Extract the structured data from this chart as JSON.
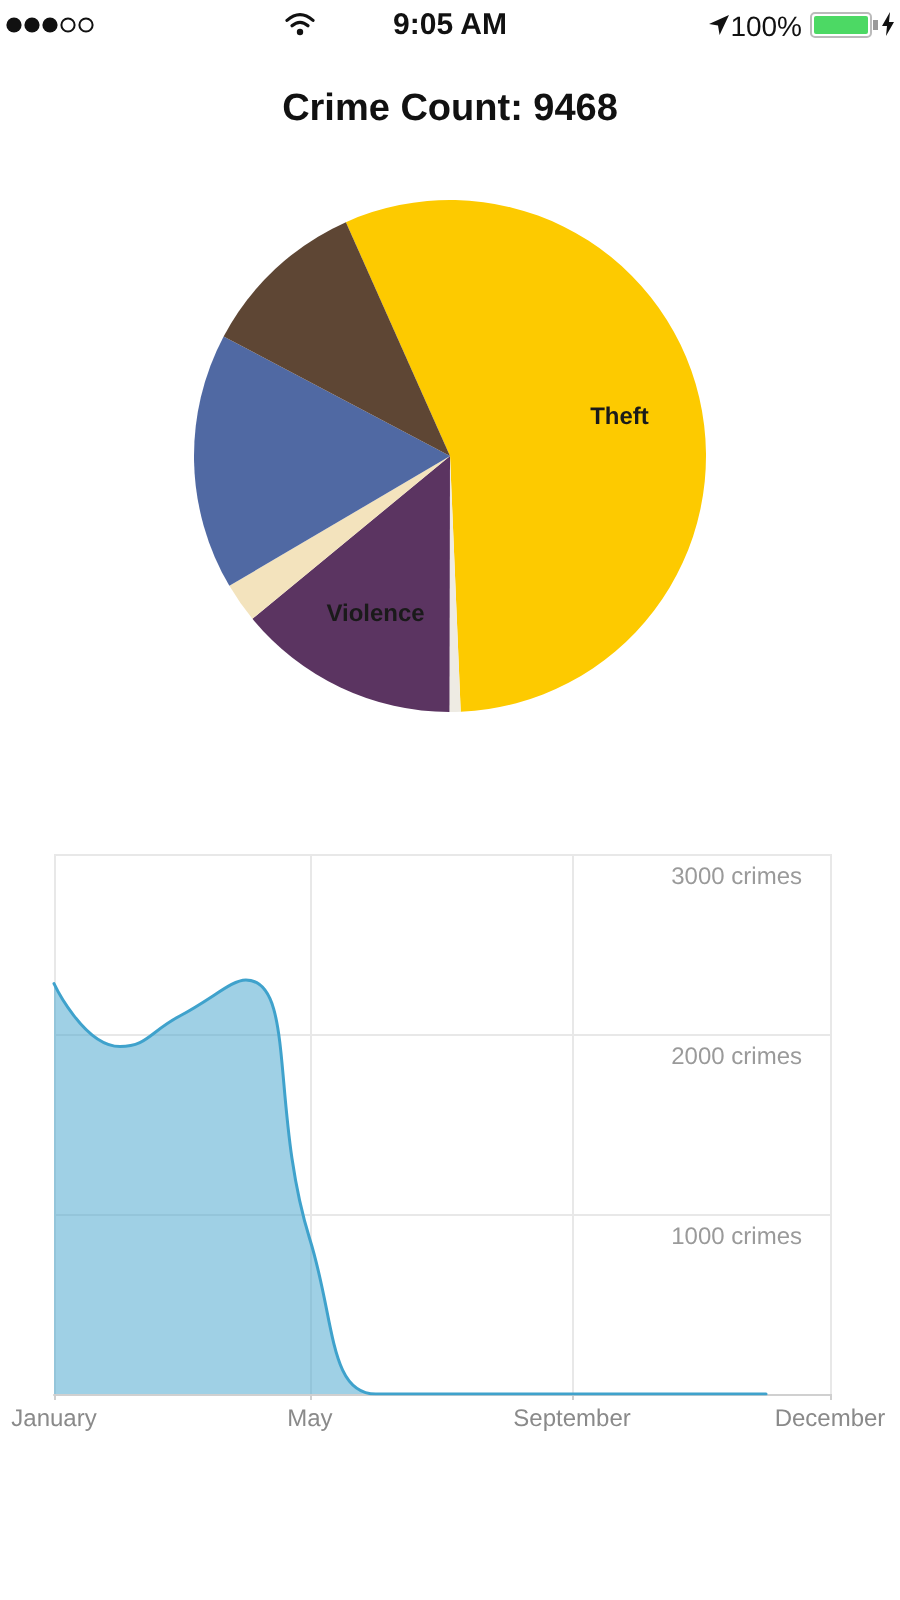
{
  "chart_data": [
    {
      "type": "pie",
      "title": "Crime Count: 9468",
      "annotations": [
        "9:05 AM",
        "100%"
      ],
      "categories": [
        "Theft",
        null,
        "Violence",
        null,
        null,
        null
      ],
      "values": [
        56.0,
        0.7,
        14.0,
        2.5,
        16.2,
        10.6
      ],
      "colors": [
        "#fdca00",
        "#eeebe3",
        "#5b3461",
        "#f3e3bd",
        "#5069a3",
        "#5e4634"
      ]
    },
    {
      "type": "area",
      "x": [
        "--01-01",
        "--02-01",
        "--03-01",
        "--04-01",
        "--05-01",
        "--06-01",
        "--07-01",
        "--08-01",
        "--09-01",
        "--10-01",
        "--11-01",
        "--12-01"
      ],
      "values": [
        2280,
        1930,
        2100,
        2300,
        860,
        0,
        0,
        0,
        0,
        0,
        0,
        0
      ],
      "color": "#3fa2cc",
      "xlim": [
        "--01-01",
        "--12-31"
      ],
      "xticks": [
        {
          "value": "--01-01",
          "label": "January"
        },
        {
          "value": "--05-01",
          "label": "May"
        },
        {
          "value": "--09-01",
          "label": "September"
        },
        {
          "value": "--12-31",
          "label": "December"
        }
      ],
      "ylim": [
        0,
        3000
      ],
      "yticks": [
        {
          "value": 0,
          "label": null
        },
        {
          "value": 1000,
          "label": "1000 crimes"
        },
        {
          "value": 2000,
          "label": "2000 crimes"
        },
        {
          "value": 3000,
          "label": "3000 crimes"
        }
      ],
      "grid": true,
      "marker": "none"
    }
  ]
}
